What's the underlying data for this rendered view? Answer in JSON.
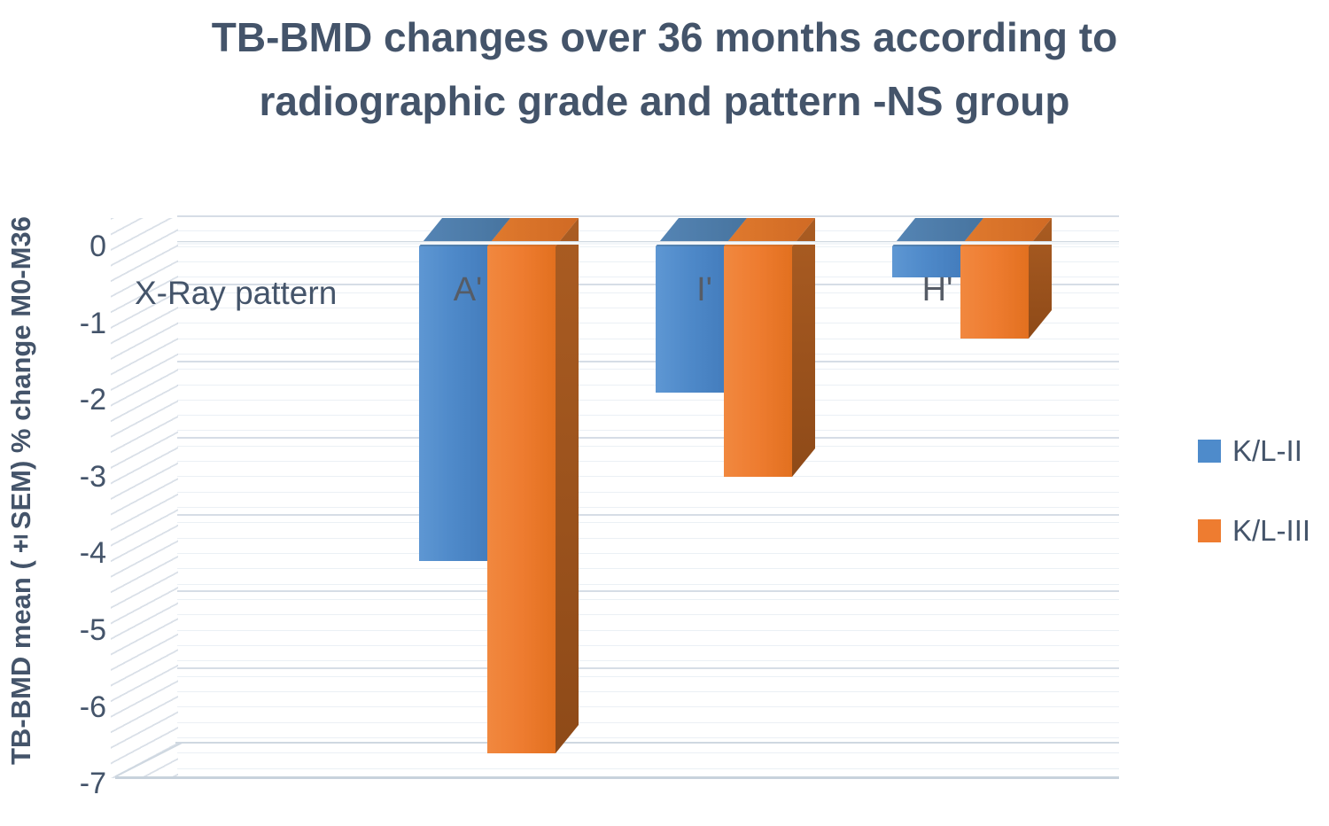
{
  "header": {
    "title_line1": "TB-BMD changes over 36 months according to",
    "title_line2": "radiographic grade and pattern -NS group"
  },
  "chart_data": {
    "type": "bar",
    "projection": "3d",
    "title": "TB-BMD changes over 36 months according to radiographic grade and pattern -NS group",
    "categories": [
      "A'",
      "I'",
      "H'"
    ],
    "series": [
      {
        "name": "K/L-II",
        "color": "#4E8BCB",
        "values": [
          -4.1,
          -1.9,
          -0.4
        ]
      },
      {
        "name": "K/L-III",
        "color": "#EE7C30",
        "values": [
          -6.6,
          -3.0,
          -1.2
        ]
      }
    ],
    "xlabel": "X-Ray pattern",
    "ylabel": "TB-BMD mean (±SEM) % change M0-M36",
    "yticks": [
      "0",
      "-1",
      "-2",
      "-3",
      "-4",
      "-5",
      "-6",
      "-7"
    ],
    "ylim": [
      -7,
      0
    ],
    "grid": true,
    "legend_position": "right",
    "colors": {
      "title_text": "#44546A",
      "axis_text": "#44546A",
      "category_text": "#565C66",
      "kl2_blue": "#4E8BCB",
      "kl3_orange": "#EE7C30"
    }
  }
}
